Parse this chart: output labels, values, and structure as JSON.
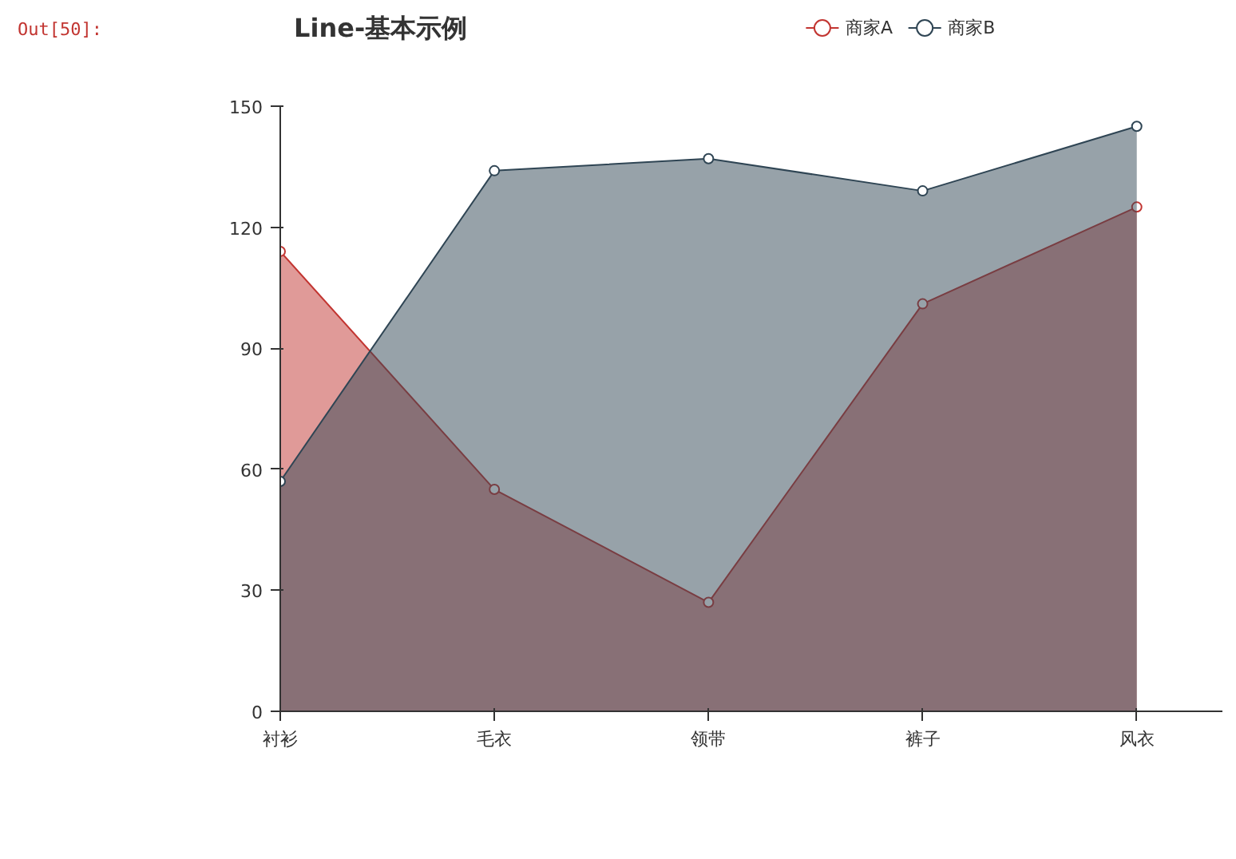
{
  "chart_data": {
    "type": "area",
    "title": "Line-基本示例",
    "annotations": [
      "Out[50]:"
    ],
    "categories": [
      "衬衫",
      "毛衣",
      "领带",
      "裤子",
      "风衣"
    ],
    "series": [
      {
        "name": "商家A",
        "color": "#c23531",
        "values": [
          114,
          55,
          27,
          101,
          125
        ]
      },
      {
        "name": "商家B",
        "color": "#2f4554",
        "values": [
          57,
          134,
          137,
          129,
          145
        ]
      }
    ],
    "ylim": [
      0,
      150
    ],
    "yticks": [
      0,
      30,
      60,
      90,
      120,
      150
    ],
    "grid": false,
    "legend": "top",
    "marker": "circle",
    "line_style": "solid"
  }
}
